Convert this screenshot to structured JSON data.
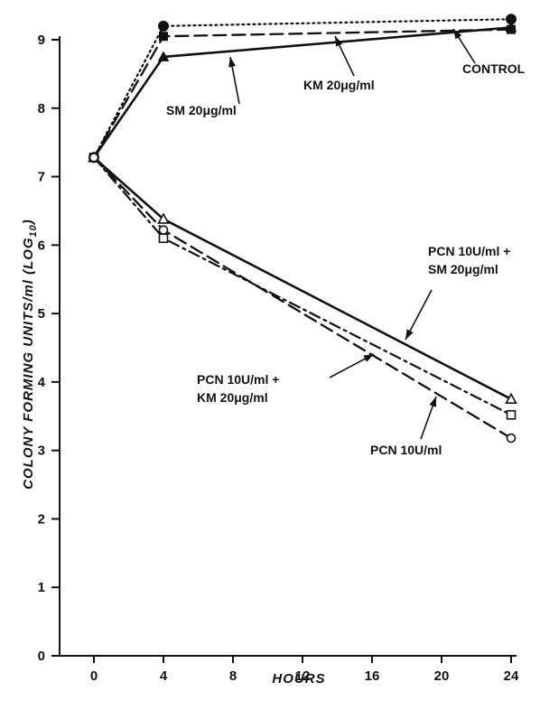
{
  "chart_data": {
    "type": "line",
    "xlabel": "HOURS",
    "ylabel": "COLONY FORMING UNITS/ml (LOG",
    "ylabel_sub": "10",
    "ylabel_close": ")",
    "xlim": [
      0,
      24
    ],
    "ylim": [
      0,
      9
    ],
    "xticks": [
      "0",
      "4",
      "8",
      "12",
      "16",
      "20",
      "24"
    ],
    "yticks": [
      "0",
      "1",
      "2",
      "3",
      "4",
      "5",
      "6",
      "7",
      "8",
      "9"
    ],
    "grid": false,
    "legend": "none",
    "series": [
      {
        "name": "CONTROL",
        "x": [
          0,
          4,
          24
        ],
        "y": [
          7.28,
          9.2,
          9.3
        ],
        "dash": "dotted",
        "marker": "filled-circle"
      },
      {
        "name": "KM 20μg/ml",
        "x": [
          0,
          4,
          24
        ],
        "y": [
          7.28,
          9.05,
          9.15
        ],
        "dash": "dashed",
        "marker": "filled-square"
      },
      {
        "name": "SM 20μg/ml",
        "x": [
          0,
          4,
          24
        ],
        "y": [
          7.28,
          8.75,
          9.18
        ],
        "dash": "solid",
        "marker": "filled-triangle"
      },
      {
        "name": "PCN 10U/ml + SM 20μg/ml",
        "x": [
          0,
          4,
          24
        ],
        "y": [
          7.28,
          6.38,
          3.75
        ],
        "dash": "solid",
        "marker": "open-triangle"
      },
      {
        "name": "PCN 10U/ml + KM 20μg/ml",
        "x": [
          0,
          4,
          24
        ],
        "y": [
          7.28,
          6.1,
          3.52
        ],
        "dash": "dashdot",
        "marker": "open-square"
      },
      {
        "name": "PCN 10U/ml",
        "x": [
          0,
          4,
          24
        ],
        "y": [
          7.28,
          6.22,
          3.18
        ],
        "dash": "dashed",
        "marker": "open-circle"
      }
    ],
    "annotations": [
      {
        "id": "control",
        "lines": [
          "CONTROL"
        ]
      },
      {
        "id": "km",
        "lines": [
          "KM 20μg/ml"
        ]
      },
      {
        "id": "sm",
        "lines": [
          "SM 20μg/ml"
        ]
      },
      {
        "id": "pcn-sm",
        "lines": [
          "PCN 10U/ml +",
          "SM 20μg/ml"
        ]
      },
      {
        "id": "pcn-km",
        "lines": [
          "PCN 10U/ml +",
          "KM 20μg/ml"
        ]
      },
      {
        "id": "pcn",
        "lines": [
          "PCN 10U/ml"
        ]
      }
    ]
  }
}
